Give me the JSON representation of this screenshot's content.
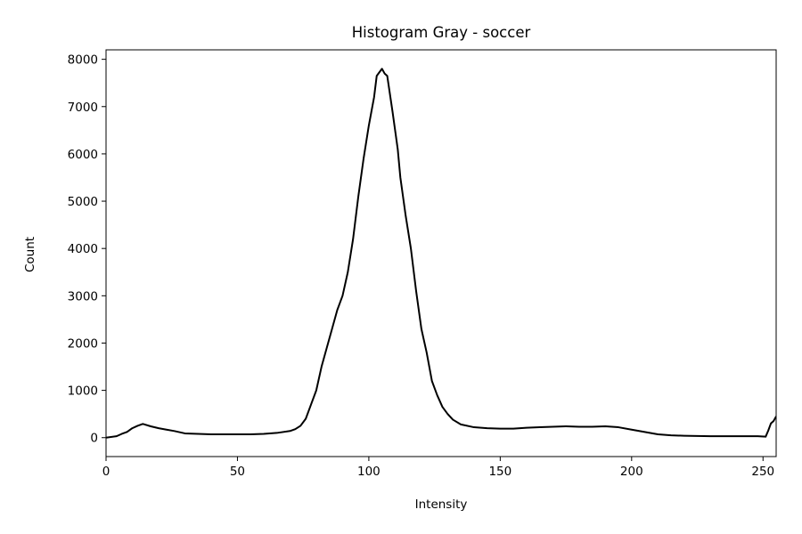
{
  "chart_data": {
    "type": "line",
    "title": "Histogram Gray - soccer",
    "xlabel": "Intensity",
    "ylabel": "Count",
    "xlim": [
      0,
      255
    ],
    "ylim": [
      -400,
      8200
    ],
    "xticks": [
      0,
      50,
      100,
      150,
      200,
      250
    ],
    "yticks": [
      0,
      1000,
      2000,
      3000,
      4000,
      5000,
      6000,
      7000,
      8000
    ],
    "grid": false,
    "series": [
      {
        "color": "#000000",
        "points": [
          [
            0,
            0
          ],
          [
            4,
            30
          ],
          [
            6,
            80
          ],
          [
            8,
            120
          ],
          [
            10,
            200
          ],
          [
            12,
            250
          ],
          [
            14,
            290
          ],
          [
            17,
            240
          ],
          [
            20,
            200
          ],
          [
            23,
            170
          ],
          [
            26,
            140
          ],
          [
            30,
            90
          ],
          [
            35,
            80
          ],
          [
            40,
            70
          ],
          [
            45,
            70
          ],
          [
            50,
            70
          ],
          [
            55,
            70
          ],
          [
            60,
            80
          ],
          [
            65,
            100
          ],
          [
            70,
            140
          ],
          [
            72,
            180
          ],
          [
            74,
            250
          ],
          [
            76,
            400
          ],
          [
            78,
            700
          ],
          [
            80,
            1000
          ],
          [
            82,
            1500
          ],
          [
            84,
            1900
          ],
          [
            86,
            2300
          ],
          [
            88,
            2700
          ],
          [
            90,
            3000
          ],
          [
            92,
            3500
          ],
          [
            94,
            4200
          ],
          [
            96,
            5100
          ],
          [
            98,
            5900
          ],
          [
            100,
            6600
          ],
          [
            102,
            7200
          ],
          [
            103,
            7650
          ],
          [
            105,
            7800
          ],
          [
            106,
            7700
          ],
          [
            107,
            7650
          ],
          [
            109,
            6900
          ],
          [
            111,
            6100
          ],
          [
            112,
            5500
          ],
          [
            114,
            4700
          ],
          [
            116,
            4000
          ],
          [
            118,
            3100
          ],
          [
            120,
            2300
          ],
          [
            122,
            1800
          ],
          [
            124,
            1200
          ],
          [
            126,
            900
          ],
          [
            128,
            650
          ],
          [
            130,
            500
          ],
          [
            132,
            380
          ],
          [
            135,
            280
          ],
          [
            140,
            220
          ],
          [
            145,
            200
          ],
          [
            150,
            190
          ],
          [
            155,
            190
          ],
          [
            160,
            210
          ],
          [
            165,
            220
          ],
          [
            170,
            230
          ],
          [
            175,
            240
          ],
          [
            180,
            230
          ],
          [
            185,
            230
          ],
          [
            190,
            240
          ],
          [
            195,
            220
          ],
          [
            200,
            170
          ],
          [
            205,
            120
          ],
          [
            210,
            70
          ],
          [
            215,
            50
          ],
          [
            220,
            40
          ],
          [
            230,
            30
          ],
          [
            240,
            30
          ],
          [
            248,
            30
          ],
          [
            251,
            20
          ],
          [
            252,
            150
          ],
          [
            253,
            300
          ],
          [
            254,
            350
          ],
          [
            255,
            450
          ]
        ]
      }
    ]
  }
}
